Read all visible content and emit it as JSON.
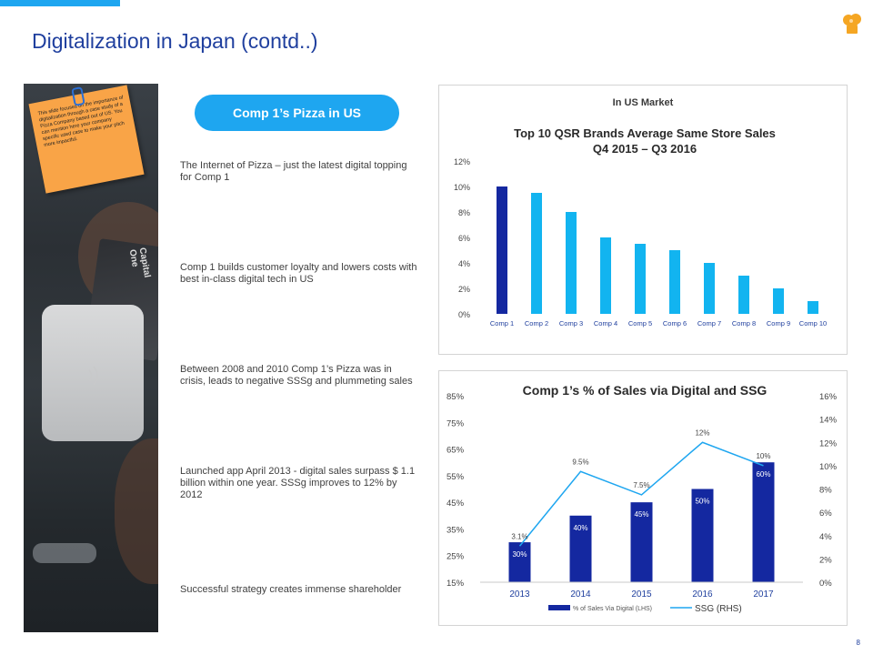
{
  "page": {
    "title": "Digitalization  in Japan (contd..)",
    "page_number": "8"
  },
  "sticky_note": {
    "text": "This slide focuses on the importance of digitalization through a case study of a Pizza Company based out of US. You can mention here your company specific used case to make your pitch more impactful."
  },
  "card_text": "Capital One",
  "pill_label": "Comp 1’s Pizza in US",
  "points": [
    "The Internet of Pizza  – just the latest digital topping for Comp 1",
    "Comp 1 builds customer loyalty and lowers costs with best in-class digital tech in US",
    "Between 2008 and 2010 Comp 1’s Pizza was in crisis, leads to negative SSSg and plummeting sales",
    "Launched app April 2013 - digital sales surpass $ 1.1 billion within one year. SSSg improves to 12% by 2012",
    "Successful strategy creates immense shareholder"
  ],
  "colors": {
    "title": "#1f3f9e",
    "pill": "#1ea6f0",
    "bar_dark": "#1428a0",
    "bar_light": "#12b4f0",
    "line": "#1ea6f0"
  },
  "chart_data": [
    {
      "type": "bar",
      "header": "In US Market",
      "title": "Top 10 QSR Brands Average Same Store Sales",
      "subtitle": "Q4 2015 – Q3 2016",
      "categories": [
        "Comp 1",
        "Comp 2",
        "Comp 3",
        "Comp 4",
        "Comp 5",
        "Comp 6",
        "Comp 7",
        "Comp 8",
        "Comp 9",
        "Comp 10"
      ],
      "values": [
        10,
        9.5,
        8,
        6,
        5.5,
        5,
        4,
        3,
        2,
        1
      ],
      "ylim": [
        0,
        12
      ],
      "yticks": [
        "0%",
        "2%",
        "4%",
        "6%",
        "8%",
        "10%",
        "12%"
      ],
      "grid": false
    },
    {
      "type": "bar",
      "title": "Comp 1’s % of Sales via Digital and SSG",
      "categories": [
        "2013",
        "2014",
        "2015",
        "2016",
        "2017"
      ],
      "series": [
        {
          "name": "% of Sales Via Digital (LHS)",
          "values": [
            30,
            40,
            45,
            50,
            60
          ],
          "labels": [
            "30%",
            "40%",
            "45%",
            "50%",
            "60%"
          ]
        },
        {
          "name": "SSG (RHS)",
          "type": "line",
          "values": [
            3.1,
            9.5,
            7.5,
            12,
            10
          ],
          "labels": [
            "3.1%",
            "9.5%",
            "7.5%",
            "12%",
            "10%"
          ]
        }
      ],
      "ylim_left": [
        15,
        85
      ],
      "yticks_left": [
        "15%",
        "25%",
        "35%",
        "45%",
        "55%",
        "65%",
        "75%",
        "85%"
      ],
      "ylim_right": [
        0,
        16
      ],
      "yticks_right": [
        "0%",
        "2%",
        "4%",
        "6%",
        "8%",
        "10%",
        "12%",
        "14%",
        "16%"
      ],
      "legend": "bottom",
      "grid": false
    }
  ]
}
